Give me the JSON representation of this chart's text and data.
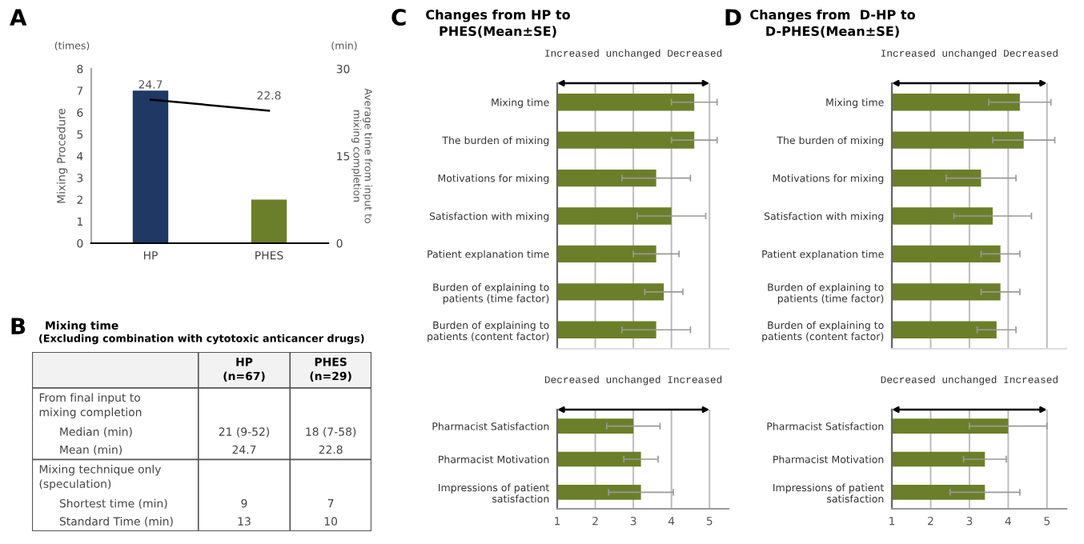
{
  "chart_data": [
    {
      "type": "bar",
      "annotations": [
        "A",
        "(times)",
        "(min)"
      ],
      "categories": [
        "HP",
        "PHES"
      ],
      "ylabel": "Mixing Procedure",
      "y2label": "Average time from input to\nmixing completion",
      "ylim": [
        0,
        8
      ],
      "yticks": [
        0,
        1,
        2,
        3,
        4,
        5,
        6,
        7,
        8
      ],
      "y2lim": [
        0,
        30
      ],
      "y2ticks": [
        0,
        15,
        30
      ],
      "marker": "none",
      "series": [
        {
          "type": "bar",
          "colors": [
            "#1f3864",
            "#6b7f2a"
          ],
          "values": [
            7,
            2
          ]
        },
        {
          "type": "line",
          "axis": "y2",
          "color": "#000000",
          "values": [
            24.7,
            22.8
          ],
          "value_labels": [
            "24.7",
            "22.8"
          ]
        }
      ]
    },
    {
      "type": "other",
      "annotations": [
        "B"
      ],
      "title": "Mixing time",
      "subtitle": "(Excluding combination with cytotoxic anticancer drugs)",
      "categories": [
        "HP\n(n=67)",
        "PHES\n(n=29)"
      ],
      "y_categories": [
        "From final input to\nmixing completion",
        "Median (min)",
        "Mean (min)",
        "Mixing technique only\n(speculation)",
        "Shortest time (min)",
        "Standard Time (min)"
      ],
      "cell_labels": [
        [
          null,
          null
        ],
        [
          "21 (9-52)",
          "18 (7-58)"
        ],
        [
          "24.7",
          "22.8"
        ],
        [
          null,
          null
        ],
        [
          "9",
          "7"
        ],
        [
          "13",
          "10"
        ]
      ]
    },
    {
      "type": "bar",
      "orientation": "horizontal",
      "annotations": [
        "C",
        "Increased unchanged Decreased"
      ],
      "title": "Changes from HP to\nPHES(Mean±SE)",
      "categories": [
        "Mixing time",
        "The burden of mixing",
        "Motivations for mixing",
        "Satisfaction with mixing",
        "Patient explanation time",
        "Burden of explaining to\npatients (time factor)",
        "Burden of explaining to\npatients (content factor)"
      ],
      "color": "#6b7f2a",
      "values": [
        4.6,
        4.6,
        3.6,
        4.0,
        3.6,
        3.8,
        3.6
      ],
      "errors": [
        0.6,
        0.6,
        0.9,
        0.9,
        0.6,
        0.5,
        0.9
      ],
      "xlim": [
        1,
        5.5
      ],
      "xticks": [
        1,
        2,
        3,
        4,
        5
      ],
      "grid": "x",
      "tick_labels": "y"
    },
    {
      "type": "bar",
      "orientation": "horizontal",
      "annotations": [
        "Decreased unchanged Increased"
      ],
      "categories": [
        "Pharmacist Satisfaction",
        "Pharmacist Motivation",
        "Impressions of patient\nsatisfaction"
      ],
      "color": "#6b7f2a",
      "values": [
        3.0,
        3.2,
        3.2
      ],
      "errors": [
        0.7,
        0.45,
        0.85
      ],
      "xlim": [
        1,
        5.5
      ],
      "xticks": [
        1,
        2,
        3,
        4,
        5
      ],
      "grid": "x"
    },
    {
      "type": "bar",
      "orientation": "horizontal",
      "annotations": [
        "D",
        "Increased unchanged Decreased"
      ],
      "title": "Changes from  D-HP to\nD-PHES(Mean±SE)",
      "categories": [
        "Mixing time",
        "The burden of mixing",
        "Motivations for mixing",
        "Satisfaction with mixing",
        "Patient explanation time",
        "Burden of explaining to\npatients (time factor)",
        "Burden of explaining to\npatients (content factor)"
      ],
      "color": "#6b7f2a",
      "values": [
        4.3,
        4.4,
        3.3,
        3.6,
        3.8,
        3.8,
        3.7
      ],
      "errors": [
        0.8,
        0.8,
        0.9,
        1.0,
        0.5,
        0.5,
        0.5
      ],
      "xlim": [
        1,
        5.5
      ],
      "xticks": [
        1,
        2,
        3,
        4,
        5
      ],
      "grid": "x",
      "tick_labels": "y"
    },
    {
      "type": "bar",
      "orientation": "horizontal",
      "annotations": [
        "Decreased unchanged Increased"
      ],
      "categories": [
        "Pharmacist Satisfaction",
        "Pharmacist Motivation",
        "Impressions of patient\nsatisfaction"
      ],
      "color": "#6b7f2a",
      "values": [
        4.0,
        3.4,
        3.4
      ],
      "errors": [
        1.0,
        0.55,
        0.9
      ],
      "xlim": [
        1,
        5.5
      ],
      "xticks": [
        1,
        2,
        3,
        4,
        5
      ],
      "grid": "x"
    }
  ]
}
